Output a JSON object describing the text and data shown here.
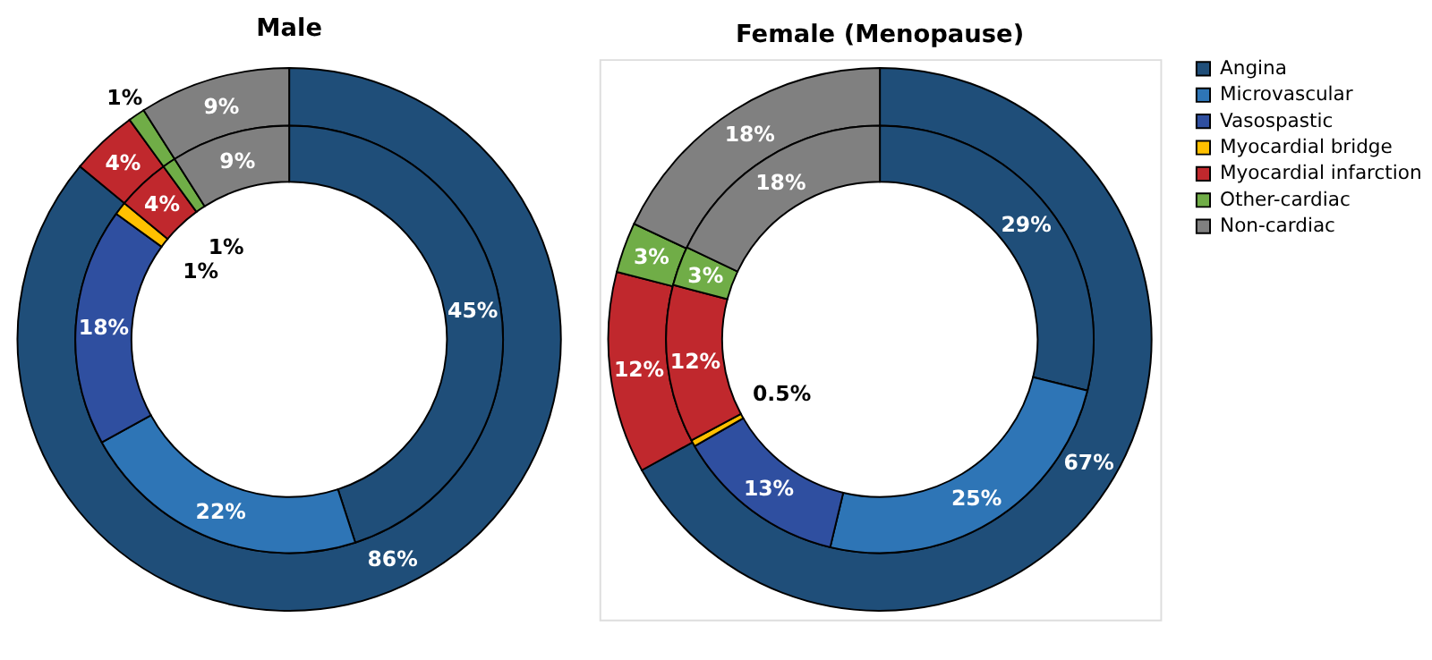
{
  "chart_data": [
    {
      "type": "donut",
      "title": "Male",
      "series": [
        {
          "values": [
            86,
            null,
            null,
            null,
            4,
            1,
            9
          ],
          "colors": [
            "#1f4e79",
            "#2e75b6",
            "#2f4fa0",
            "#ffc000",
            "#c0282d",
            "#70ad47",
            "#808080"
          ],
          "value_labels": [
            "86%",
            null,
            null,
            null,
            "4%",
            "1%",
            "9%"
          ]
        },
        {
          "values": [
            45,
            22,
            18,
            1,
            4,
            1,
            9
          ],
          "colors": [
            "#1f4e79",
            "#2e75b6",
            "#2f4fa0",
            "#ffc000",
            "#c0282d",
            "#70ad47",
            "#808080"
          ],
          "value_labels": [
            "45%",
            "22%",
            "18%",
            "1%",
            "4%",
            "1%",
            "9%"
          ]
        }
      ]
    },
    {
      "type": "donut",
      "title": "Female (Menopause)",
      "legend": "right",
      "categories": [
        "Angina",
        "Microvascular",
        "Vasospastic",
        "Myocardial bridge",
        "Myocardial infarction",
        "Other-cardiac",
        "Non-cardiac"
      ],
      "colors": [
        "#1f4e79",
        "#2e75b6",
        "#2f4fa0",
        "#ffc000",
        "#c0282d",
        "#70ad47",
        "#808080"
      ],
      "series": [
        {
          "values": [
            67,
            null,
            null,
            null,
            12,
            3,
            18
          ],
          "colors": [
            "#1f4e79",
            "#2e75b6",
            "#2f4fa0",
            "#ffc000",
            "#c0282d",
            "#70ad47",
            "#808080"
          ],
          "value_labels": [
            "67%",
            null,
            null,
            null,
            "12%",
            "3%",
            "18%"
          ]
        },
        {
          "values": [
            29,
            25,
            13,
            0.5,
            12,
            3,
            18
          ],
          "colors": [
            "#1f4e79",
            "#2e75b6",
            "#2f4fa0",
            "#ffc000",
            "#c0282d",
            "#70ad47",
            "#808080"
          ],
          "value_labels": [
            "29%",
            "25%",
            "13%",
            "0.5%",
            "12%",
            "3%",
            "18%"
          ]
        }
      ]
    }
  ]
}
